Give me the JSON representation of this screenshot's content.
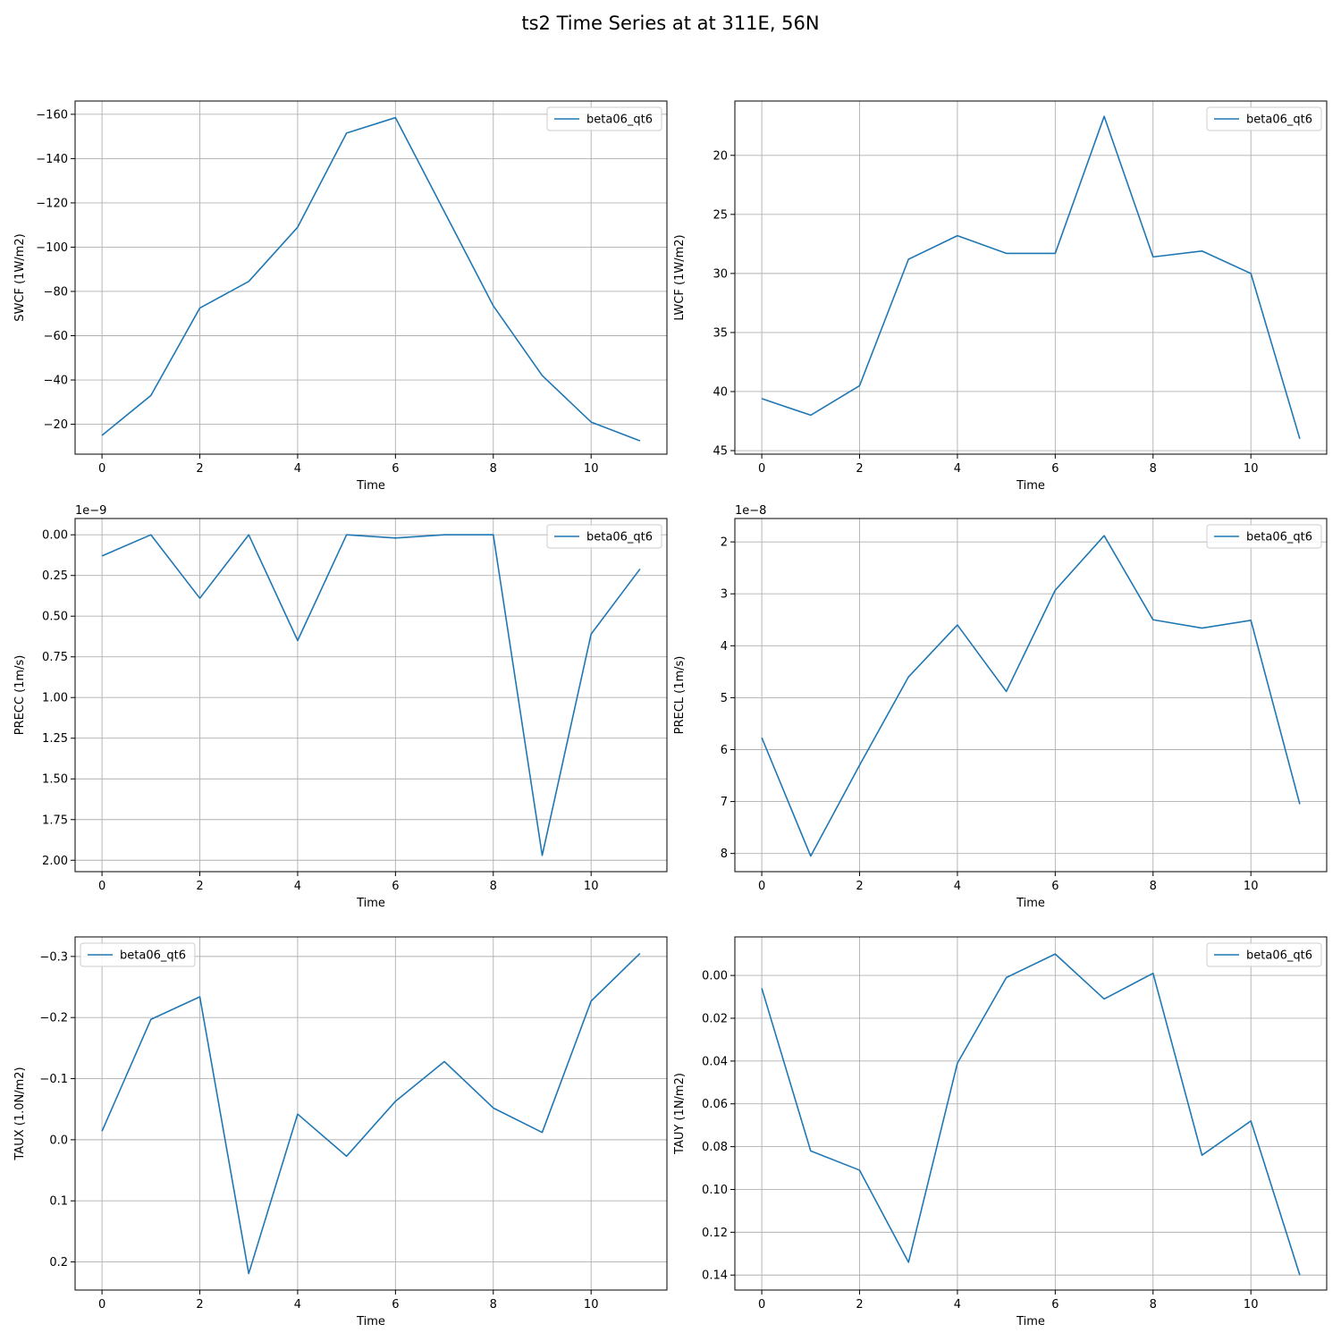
{
  "figure": {
    "title": "ts2 Time Series at at 311E, 56N"
  },
  "chart_data": [
    {
      "type": "line",
      "xlabel": "Time",
      "ylabel": "SWCF (1W/m2)",
      "y_inverted": true,
      "xlim": [
        -0.55,
        11.55
      ],
      "ylim": [
        -166,
        -6.5
      ],
      "xticks": [
        0,
        2,
        4,
        6,
        8,
        10
      ],
      "xtick_labels": [
        "0",
        "2",
        "4",
        "6",
        "8",
        "10"
      ],
      "yticks": [
        -160,
        -140,
        -120,
        -100,
        -80,
        -60,
        -40,
        -20
      ],
      "ytick_labels": [
        "−160",
        "−140",
        "−120",
        "−100",
        "−80",
        "−60",
        "−40",
        "−20"
      ],
      "offset_label": "",
      "legend": "top-right",
      "grid": true,
      "series": [
        {
          "name": "beta06_qt6",
          "color": "#1f77b4",
          "x": [
            0,
            1,
            2,
            3,
            4,
            5,
            6,
            7,
            8,
            9,
            10,
            11
          ],
          "values": [
            -15,
            -33,
            -72.5,
            -84.5,
            -109,
            -151.5,
            -158.5,
            -116,
            -73.5,
            -42,
            -21,
            -12.5
          ]
        }
      ]
    },
    {
      "type": "line",
      "xlabel": "Time",
      "ylabel": "LWCF (1W/m2)",
      "y_inverted": true,
      "xlim": [
        -0.55,
        11.55
      ],
      "ylim": [
        15.4,
        45.3
      ],
      "xticks": [
        0,
        2,
        4,
        6,
        8,
        10
      ],
      "xtick_labels": [
        "0",
        "2",
        "4",
        "6",
        "8",
        "10"
      ],
      "yticks": [
        20,
        25,
        30,
        35,
        40,
        45
      ],
      "ytick_labels": [
        "20",
        "25",
        "30",
        "35",
        "40",
        "45"
      ],
      "offset_label": "",
      "legend": "top-right",
      "grid": true,
      "series": [
        {
          "name": "beta06_qt6",
          "color": "#1f77b4",
          "x": [
            0,
            1,
            2,
            3,
            4,
            5,
            6,
            7,
            8,
            9,
            10,
            11
          ],
          "values": [
            40.6,
            42.0,
            39.5,
            28.8,
            26.8,
            28.3,
            28.3,
            16.7,
            28.6,
            28.1,
            30.0,
            44.0
          ]
        }
      ]
    },
    {
      "type": "line",
      "xlabel": "Time",
      "ylabel": "PRECC (1m/s)",
      "y_inverted": true,
      "xlim": [
        -0.55,
        11.55
      ],
      "ylim": [
        -0.1,
        2.07
      ],
      "xticks": [
        0,
        2,
        4,
        6,
        8,
        10
      ],
      "xtick_labels": [
        "0",
        "2",
        "4",
        "6",
        "8",
        "10"
      ],
      "yticks": [
        0,
        0.25,
        0.5,
        0.75,
        1.0,
        1.25,
        1.5,
        1.75,
        2.0
      ],
      "ytick_labels": [
        "0.00",
        "0.25",
        "0.50",
        "0.75",
        "1.00",
        "1.25",
        "1.50",
        "1.75",
        "2.00"
      ],
      "offset_label": "1e−9",
      "legend": "top-right",
      "grid": true,
      "series": [
        {
          "name": "beta06_qt6",
          "color": "#1f77b4",
          "x": [
            0,
            1,
            2,
            3,
            4,
            5,
            6,
            7,
            8,
            9,
            10,
            11
          ],
          "values": [
            0.13,
            0.0,
            0.39,
            0.0,
            0.65,
            0.0,
            0.02,
            0.0,
            0.0,
            1.97,
            0.61,
            0.21
          ]
        }
      ]
    },
    {
      "type": "line",
      "xlabel": "Time",
      "ylabel": "PRECL (1m/s)",
      "y_inverted": true,
      "xlim": [
        -0.55,
        11.55
      ],
      "ylim": [
        1.55,
        8.35
      ],
      "xticks": [
        0,
        2,
        4,
        6,
        8,
        10
      ],
      "xtick_labels": [
        "0",
        "2",
        "4",
        "6",
        "8",
        "10"
      ],
      "yticks": [
        2,
        3,
        4,
        5,
        6,
        7,
        8
      ],
      "ytick_labels": [
        "2",
        "3",
        "4",
        "5",
        "6",
        "7",
        "8"
      ],
      "offset_label": "1e−8",
      "legend": "top-right",
      "grid": true,
      "series": [
        {
          "name": "beta06_qt6",
          "color": "#1f77b4",
          "x": [
            0,
            1,
            2,
            3,
            4,
            5,
            6,
            7,
            8,
            9,
            10,
            11
          ],
          "values": [
            5.77,
            8.05,
            6.3,
            4.6,
            3.6,
            4.88,
            2.93,
            1.88,
            3.5,
            3.66,
            3.51,
            7.05
          ]
        }
      ]
    },
    {
      "type": "line",
      "xlabel": "Time",
      "ylabel": "TAUX (1.0N/m2)",
      "y_inverted": true,
      "xlim": [
        -0.55,
        11.55
      ],
      "ylim": [
        -0.332,
        0.246
      ],
      "xticks": [
        0,
        2,
        4,
        6,
        8,
        10
      ],
      "xtick_labels": [
        "0",
        "2",
        "4",
        "6",
        "8",
        "10"
      ],
      "yticks": [
        -0.3,
        -0.2,
        -0.1,
        0.0,
        0.1,
        0.2
      ],
      "ytick_labels": [
        "−0.3",
        "−0.2",
        "−0.1",
        "0.0",
        "0.1",
        "0.2"
      ],
      "offset_label": "",
      "legend": "top-left",
      "grid": true,
      "series": [
        {
          "name": "beta06_qt6",
          "color": "#1f77b4",
          "x": [
            0,
            1,
            2,
            3,
            4,
            5,
            6,
            7,
            8,
            9,
            10,
            11
          ],
          "values": [
            -0.014,
            -0.197,
            -0.234,
            0.219,
            -0.042,
            0.027,
            -0.063,
            -0.128,
            -0.052,
            -0.012,
            -0.227,
            -0.305
          ]
        }
      ]
    },
    {
      "type": "line",
      "xlabel": "Time",
      "ylabel": "TAUY (1N/m2)",
      "y_inverted": true,
      "xlim": [
        -0.55,
        11.55
      ],
      "ylim": [
        -0.018,
        0.147
      ],
      "xticks": [
        0,
        2,
        4,
        6,
        8,
        10
      ],
      "xtick_labels": [
        "0",
        "2",
        "4",
        "6",
        "8",
        "10"
      ],
      "yticks": [
        0.0,
        0.02,
        0.04,
        0.06,
        0.08,
        0.1,
        0.12,
        0.14
      ],
      "ytick_labels": [
        "0.00",
        "0.02",
        "0.04",
        "0.06",
        "0.08",
        "0.10",
        "0.12",
        "0.14"
      ],
      "offset_label": "",
      "legend": "top-right",
      "grid": true,
      "series": [
        {
          "name": "beta06_qt6",
          "color": "#1f77b4",
          "x": [
            0,
            1,
            2,
            3,
            4,
            5,
            6,
            7,
            8,
            9,
            10,
            11
          ],
          "values": [
            0.006,
            0.082,
            0.091,
            0.134,
            0.041,
            0.001,
            -0.01,
            0.011,
            -0.001,
            0.084,
            0.068,
            0.14
          ]
        }
      ]
    }
  ]
}
